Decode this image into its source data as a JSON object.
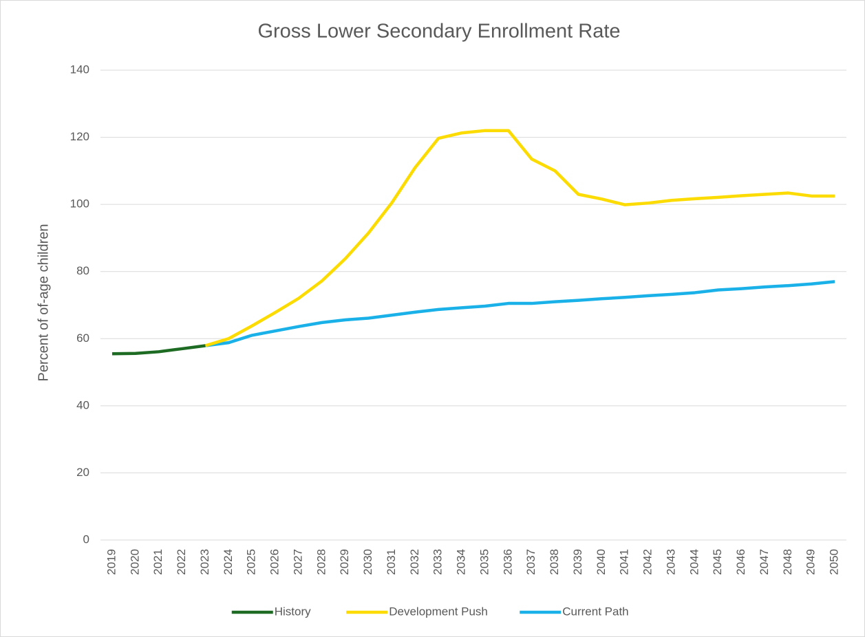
{
  "chart_data": {
    "type": "line",
    "title": "Gross Lower Secondary Enrollment Rate",
    "y_label": "Percent of of-age children",
    "categories": [
      "2019",
      "2020",
      "2021",
      "2022",
      "2023",
      "2024",
      "2025",
      "2026",
      "2027",
      "2028",
      "2029",
      "2030",
      "2031",
      "2032",
      "2033",
      "2034",
      "2035",
      "2036",
      "2037",
      "2038",
      "2039",
      "2040",
      "2041",
      "2042",
      "2043",
      "2044",
      "2045",
      "2046",
      "2047",
      "2048",
      "2049",
      "2050"
    ],
    "series": [
      {
        "name": "History",
        "color": "#1e6b24",
        "values": [
          55.5,
          55.6,
          56.1,
          57.0,
          57.9,
          null,
          null,
          null,
          null,
          null,
          null,
          null,
          null,
          null,
          null,
          null,
          null,
          null,
          null,
          null,
          null,
          null,
          null,
          null,
          null,
          null,
          null,
          null,
          null,
          null,
          null,
          null
        ]
      },
      {
        "name": "Development Push",
        "color": "#fcdc00",
        "values": [
          null,
          null,
          null,
          null,
          57.9,
          60,
          63.8,
          67.8,
          72,
          77.2,
          83.8,
          91.5,
          100.5,
          111,
          119.7,
          121.3,
          122,
          122,
          113.5,
          110,
          103,
          101.6,
          99.9,
          100.4,
          101.2,
          101.7,
          102.1,
          102.6,
          103,
          103.4,
          102.5,
          102.5
        ]
      },
      {
        "name": "Current Path",
        "color": "#1ab0e8",
        "values": [
          null,
          null,
          null,
          null,
          57.9,
          58.8,
          61,
          62.3,
          63.6,
          64.8,
          65.6,
          66.1,
          67,
          67.9,
          68.7,
          69.2,
          69.7,
          70.5,
          70.5,
          71,
          71.4,
          71.9,
          72.3,
          72.8,
          73.2,
          73.7,
          74.5,
          74.9,
          75.4,
          75.8,
          76.3,
          77
        ]
      }
    ],
    "ylim": [
      0,
      140
    ],
    "yticks": [
      0,
      20,
      40,
      60,
      80,
      100,
      120,
      140
    ],
    "grid": true,
    "legend": "bottom"
  }
}
